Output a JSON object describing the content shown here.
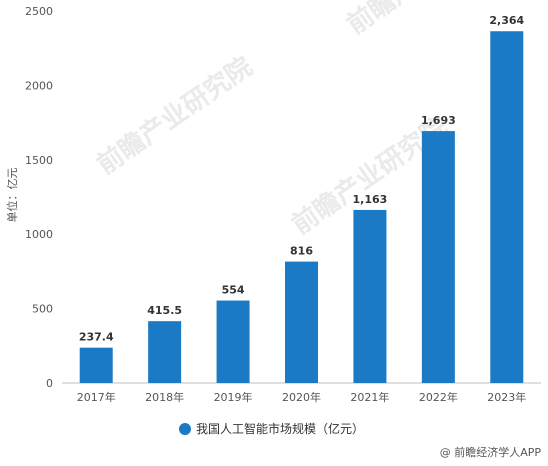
{
  "chart_data": {
    "type": "bar",
    "categories": [
      "2017年",
      "2018年",
      "2019年",
      "2020年",
      "2021年",
      "2022年",
      "2023年"
    ],
    "series": [
      {
        "name": "我国人工智能市场规模（亿元）",
        "values": [
          237.4,
          415.5,
          554,
          816,
          1163,
          1693,
          2364
        ],
        "value_labels": [
          "237.4",
          "415.5",
          "554",
          "816",
          "1,163",
          "1,693",
          "2,364"
        ]
      }
    ],
    "ylabel": "单位：亿元",
    "ylim": [
      0,
      2500
    ],
    "yticks": [
      0,
      500,
      1000,
      1500,
      2000,
      2500
    ],
    "grid": false,
    "legend_placement": "bottom",
    "bar_color": "#1a7ac5"
  },
  "watermark": "前瞻产业研究院",
  "source": "@ 前瞻经济学人APP"
}
